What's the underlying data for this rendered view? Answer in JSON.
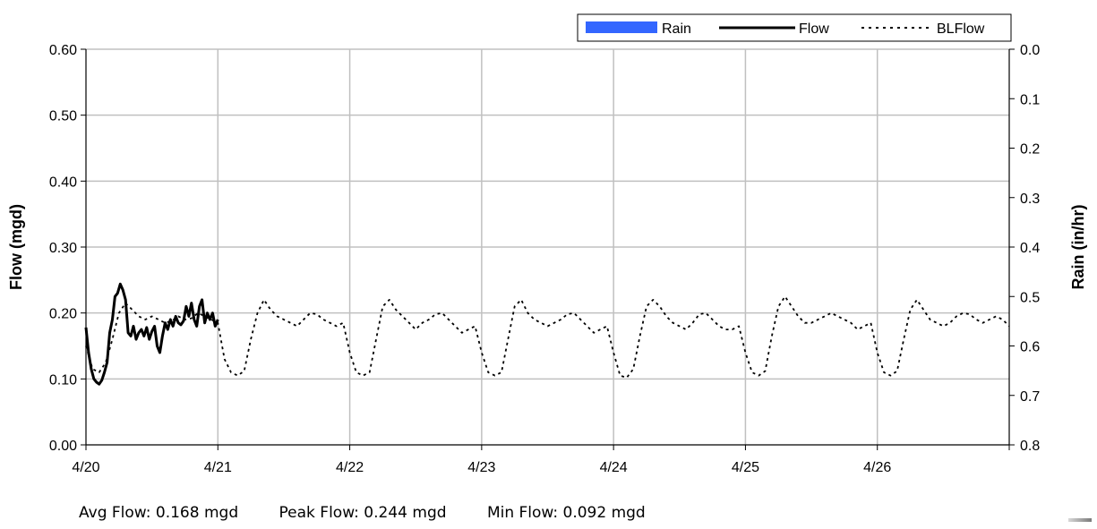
{
  "chart_data": {
    "type": "line",
    "x_axis": {
      "tick_labels": [
        "4/20",
        "4/21",
        "4/22",
        "4/23",
        "4/24",
        "4/25",
        "4/26"
      ],
      "range_days": [
        0,
        7
      ],
      "grid": true
    },
    "y_left": {
      "label": "Flow (mgd)",
      "range": [
        0,
        0.6
      ],
      "ticks": [
        "0.00",
        "0.10",
        "0.20",
        "0.30",
        "0.40",
        "0.50",
        "0.60"
      ],
      "grid": true
    },
    "y_right": {
      "label": "Rain (in/hr)",
      "range": [
        0,
        0.8
      ],
      "inverted": true,
      "ticks": [
        "0.0",
        "0.1",
        "0.2",
        "0.3",
        "0.4",
        "0.5",
        "0.6",
        "0.7",
        "0.8"
      ]
    },
    "legend": {
      "position": "top-right",
      "entries": [
        "Rain",
        "Flow",
        "BLFlow"
      ]
    },
    "colors": {
      "rain": "#3366ff",
      "flow": "#000000",
      "blflow": "#000000",
      "grid": "#c0c0c0"
    },
    "series": [
      {
        "name": "Rain",
        "style": "bar",
        "x": [],
        "y": []
      },
      {
        "name": "Flow",
        "style": "solid",
        "x": [
          0.0,
          0.02,
          0.04,
          0.06,
          0.08,
          0.1,
          0.12,
          0.14,
          0.16,
          0.18,
          0.2,
          0.22,
          0.24,
          0.26,
          0.28,
          0.3,
          0.32,
          0.34,
          0.36,
          0.38,
          0.4,
          0.42,
          0.44,
          0.46,
          0.48,
          0.5,
          0.52,
          0.54,
          0.56,
          0.58,
          0.6,
          0.62,
          0.64,
          0.66,
          0.68,
          0.7,
          0.72,
          0.74,
          0.76,
          0.78,
          0.8,
          0.82,
          0.84,
          0.86,
          0.88,
          0.9,
          0.92,
          0.94,
          0.96,
          0.98,
          1.0
        ],
        "y": [
          0.178,
          0.14,
          0.115,
          0.1,
          0.095,
          0.092,
          0.098,
          0.11,
          0.125,
          0.17,
          0.19,
          0.225,
          0.23,
          0.244,
          0.235,
          0.22,
          0.17,
          0.165,
          0.18,
          0.16,
          0.17,
          0.175,
          0.165,
          0.178,
          0.16,
          0.172,
          0.18,
          0.15,
          0.14,
          0.165,
          0.185,
          0.175,
          0.19,
          0.18,
          0.195,
          0.185,
          0.182,
          0.188,
          0.21,
          0.195,
          0.215,
          0.19,
          0.18,
          0.21,
          0.22,
          0.185,
          0.2,
          0.19,
          0.2,
          0.18,
          0.19
        ]
      },
      {
        "name": "BLFlow",
        "style": "dotted",
        "x": [
          0.0,
          0.05,
          0.1,
          0.15,
          0.2,
          0.25,
          0.3,
          0.35,
          0.4,
          0.45,
          0.5,
          0.55,
          0.6,
          0.65,
          0.7,
          0.75,
          0.8,
          0.85,
          0.9,
          0.95,
          1.0,
          1.05,
          1.1,
          1.15,
          1.2,
          1.25,
          1.3,
          1.35,
          1.4,
          1.45,
          1.5,
          1.55,
          1.6,
          1.65,
          1.7,
          1.75,
          1.8,
          1.85,
          1.9,
          1.95,
          2.0,
          2.05,
          2.1,
          2.15,
          2.2,
          2.25,
          2.3,
          2.35,
          2.4,
          2.45,
          2.5,
          2.55,
          2.6,
          2.65,
          2.7,
          2.75,
          2.8,
          2.85,
          2.9,
          2.95,
          3.0,
          3.05,
          3.1,
          3.15,
          3.2,
          3.25,
          3.3,
          3.35,
          3.4,
          3.45,
          3.5,
          3.55,
          3.6,
          3.65,
          3.7,
          3.75,
          3.8,
          3.85,
          3.9,
          3.95,
          4.0,
          4.05,
          4.1,
          4.15,
          4.2,
          4.25,
          4.3,
          4.35,
          4.4,
          4.45,
          4.5,
          4.55,
          4.6,
          4.65,
          4.7,
          4.75,
          4.8,
          4.85,
          4.9,
          4.95,
          5.0,
          5.05,
          5.1,
          5.15,
          5.2,
          5.25,
          5.3,
          5.35,
          5.4,
          5.45,
          5.5,
          5.55,
          5.6,
          5.65,
          5.7,
          5.75,
          5.8,
          5.85,
          5.9,
          5.95,
          6.0,
          6.05,
          6.1,
          6.15,
          6.2,
          6.25,
          6.3,
          6.35,
          6.4,
          6.45,
          6.5,
          6.55,
          6.6,
          6.65,
          6.7,
          6.75,
          6.8,
          6.85,
          6.9,
          6.95,
          7.0
        ],
        "y": [
          0.15,
          0.115,
          0.11,
          0.125,
          0.16,
          0.2,
          0.215,
          0.205,
          0.195,
          0.19,
          0.195,
          0.19,
          0.185,
          0.188,
          0.195,
          0.19,
          0.192,
          0.2,
          0.195,
          0.19,
          0.185,
          0.13,
          0.11,
          0.105,
          0.112,
          0.16,
          0.2,
          0.22,
          0.205,
          0.195,
          0.19,
          0.185,
          0.18,
          0.19,
          0.2,
          0.198,
          0.19,
          0.185,
          0.18,
          0.185,
          0.14,
          0.11,
          0.105,
          0.11,
          0.16,
          0.21,
          0.22,
          0.205,
          0.195,
          0.185,
          0.175,
          0.185,
          0.19,
          0.198,
          0.2,
          0.19,
          0.18,
          0.17,
          0.175,
          0.18,
          0.14,
          0.11,
          0.105,
          0.11,
          0.16,
          0.21,
          0.22,
          0.2,
          0.19,
          0.185,
          0.18,
          0.185,
          0.19,
          0.198,
          0.2,
          0.19,
          0.18,
          0.17,
          0.175,
          0.18,
          0.14,
          0.105,
          0.102,
          0.115,
          0.165,
          0.21,
          0.22,
          0.21,
          0.195,
          0.185,
          0.18,
          0.175,
          0.185,
          0.198,
          0.2,
          0.19,
          0.18,
          0.175,
          0.175,
          0.18,
          0.14,
          0.11,
          0.105,
          0.112,
          0.165,
          0.21,
          0.225,
          0.21,
          0.195,
          0.185,
          0.185,
          0.19,
          0.195,
          0.2,
          0.195,
          0.19,
          0.185,
          0.175,
          0.18,
          0.185,
          0.14,
          0.11,
          0.105,
          0.112,
          0.16,
          0.205,
          0.22,
          0.205,
          0.19,
          0.185,
          0.18,
          0.185,
          0.195,
          0.2,
          0.198,
          0.19,
          0.185,
          0.19,
          0.195,
          0.19,
          0.18
        ]
      }
    ]
  },
  "stats": {
    "avg": "Avg Flow: 0.168 mgd",
    "peak": "Peak Flow: 0.244 mgd",
    "min": "Min Flow: 0.092 mgd"
  }
}
